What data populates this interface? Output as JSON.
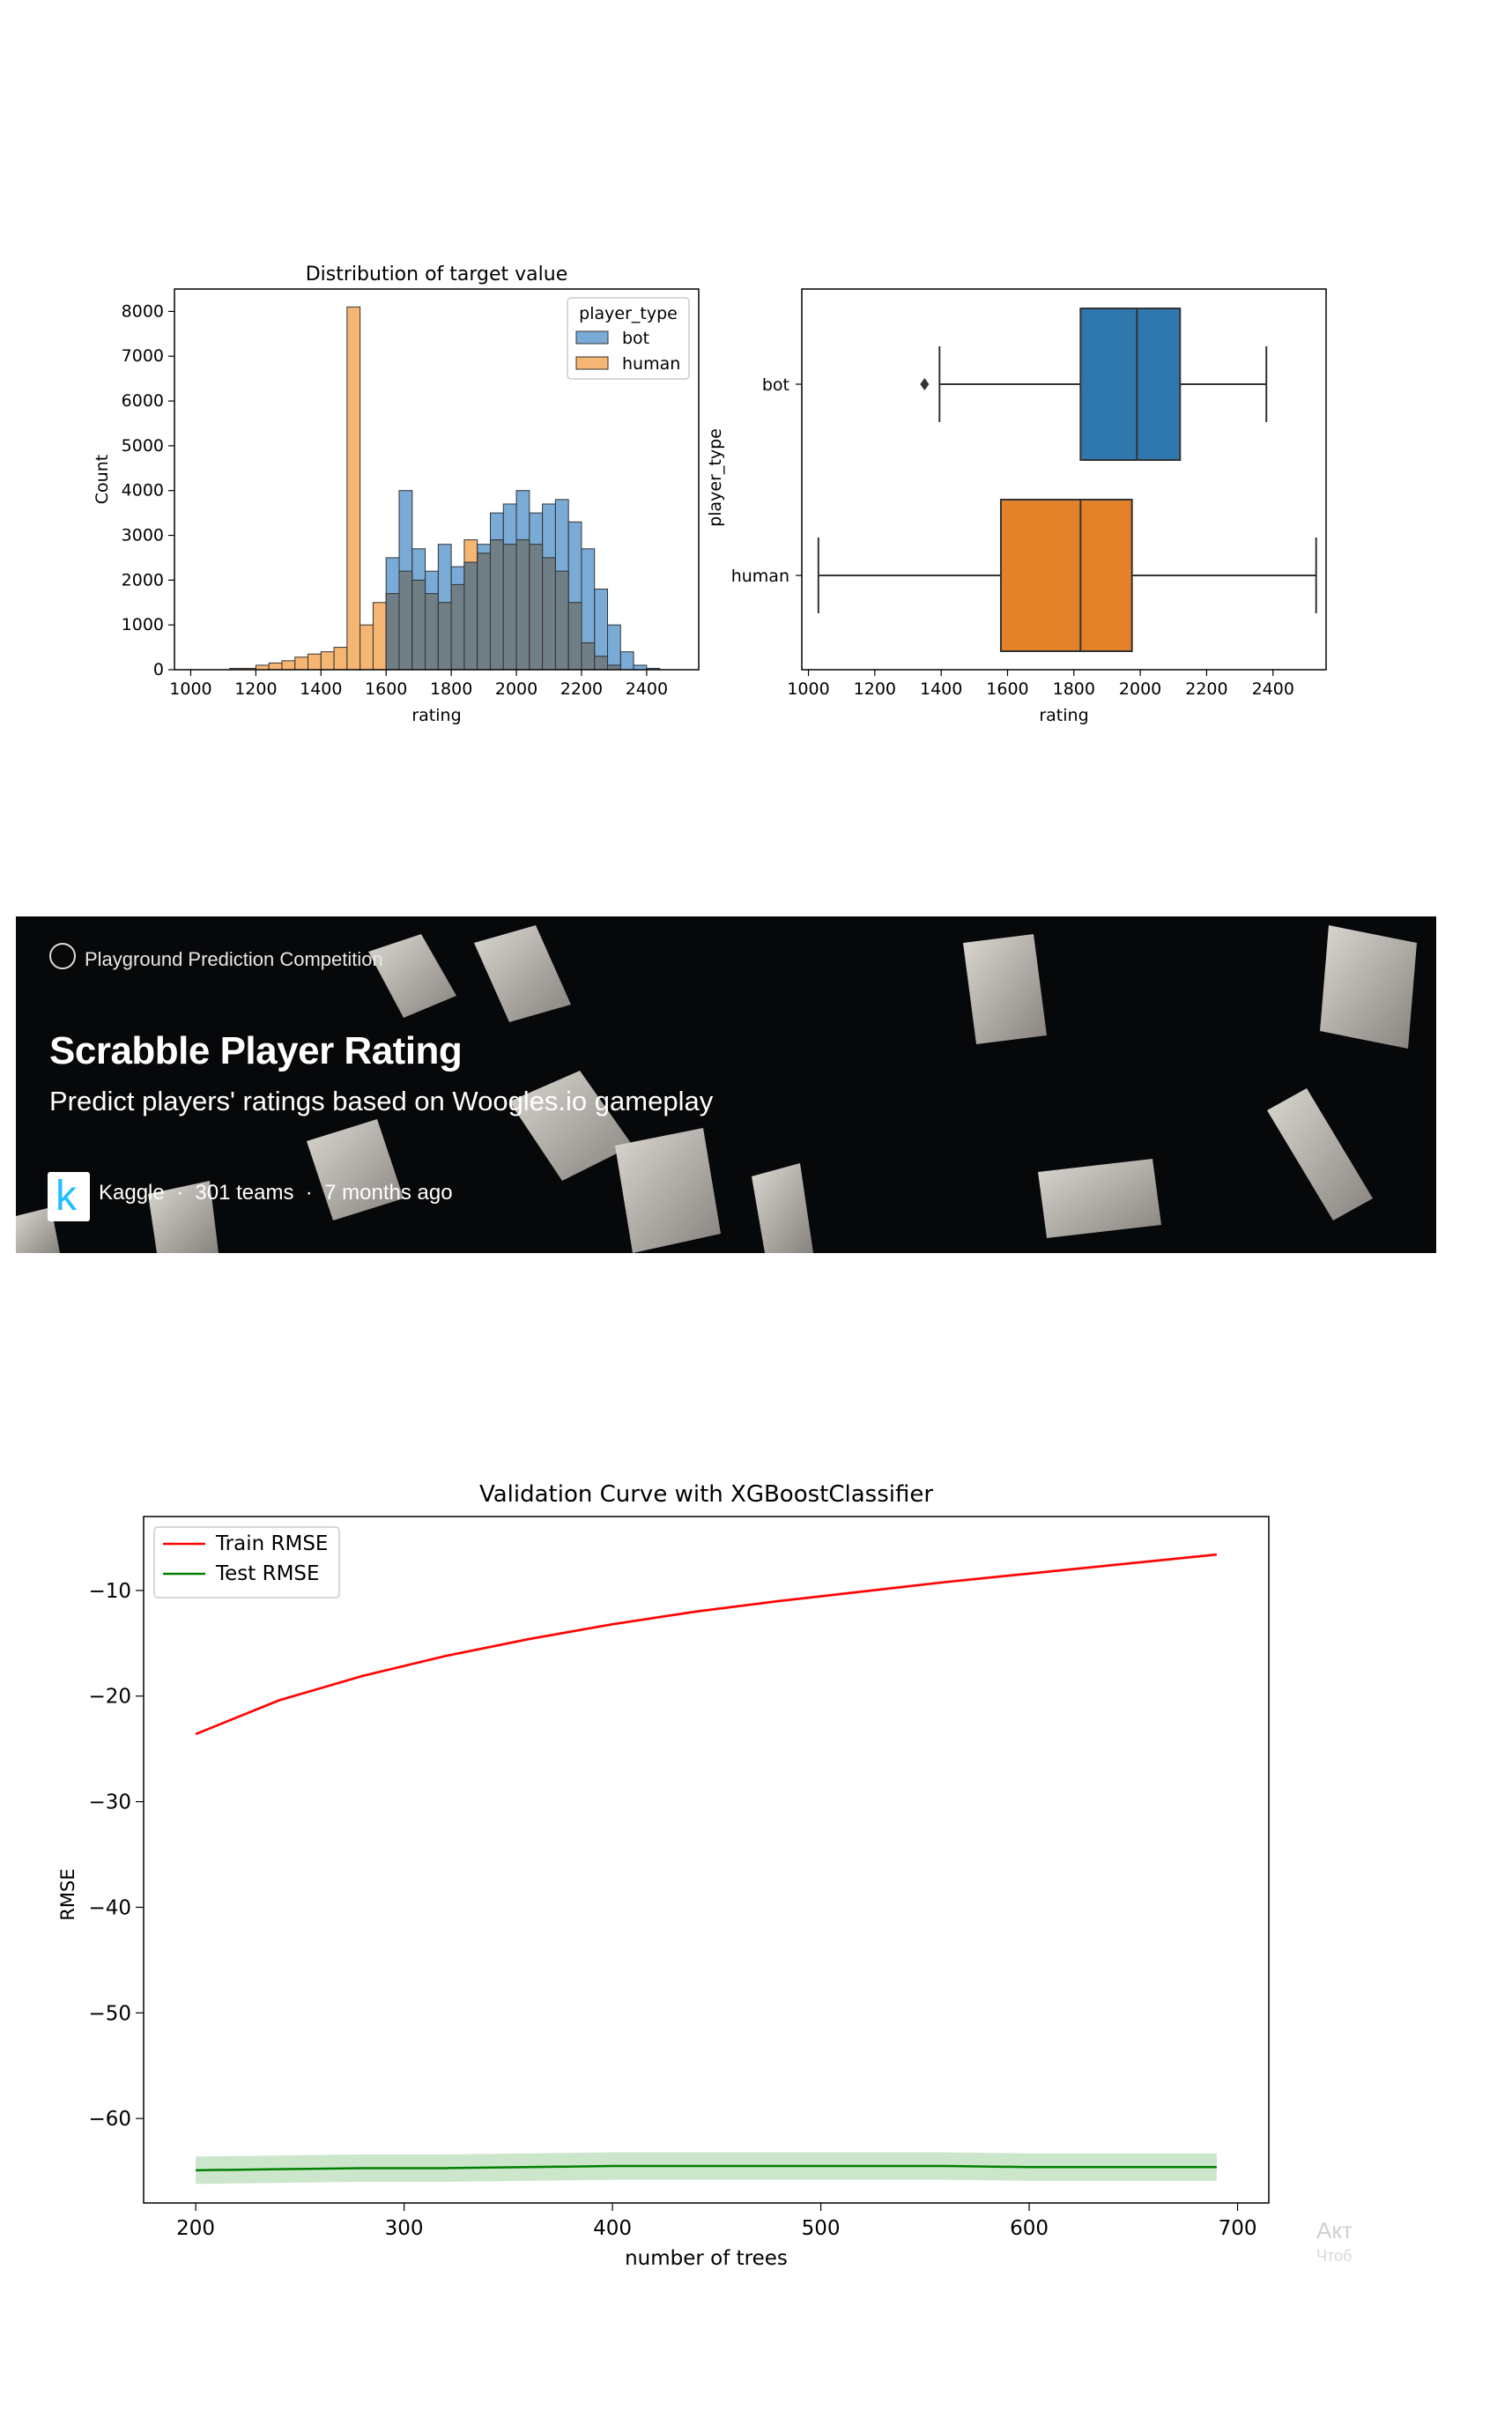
{
  "chart_data": [
    {
      "type": "bar",
      "subtype": "histogram",
      "title": "Distribution of target value",
      "xlabel": "rating",
      "ylabel": "Count",
      "xlim": [
        950,
        2560
      ],
      "ylim": [
        0,
        8500
      ],
      "xticks": [
        1000,
        1200,
        1400,
        1600,
        1800,
        2000,
        2200,
        2400
      ],
      "yticks": [
        0,
        1000,
        2000,
        3000,
        4000,
        5000,
        6000,
        7000,
        8000
      ],
      "legend": {
        "title": "player_type",
        "placement": "top-right"
      },
      "bin_width": 40,
      "series": [
        {
          "name": "human",
          "color": "#f5a95a",
          "bins": [
            [
              1120,
              30
            ],
            [
              1160,
              30
            ],
            [
              1200,
              100
            ],
            [
              1240,
              150
            ],
            [
              1280,
              200
            ],
            [
              1320,
              280
            ],
            [
              1360,
              350
            ],
            [
              1400,
              400
            ],
            [
              1440,
              500
            ],
            [
              1480,
              8100
            ],
            [
              1520,
              1000
            ],
            [
              1560,
              1500
            ],
            [
              1600,
              1700
            ],
            [
              1640,
              2200
            ],
            [
              1680,
              2000
            ],
            [
              1720,
              1700
            ],
            [
              1760,
              1500
            ],
            [
              1800,
              1900
            ],
            [
              1840,
              2900
            ],
            [
              1880,
              2600
            ],
            [
              1920,
              2900
            ],
            [
              1960,
              2800
            ],
            [
              2000,
              2900
            ],
            [
              2040,
              2800
            ],
            [
              2080,
              2500
            ],
            [
              2120,
              2200
            ],
            [
              2160,
              1500
            ],
            [
              2200,
              600
            ],
            [
              2240,
              300
            ],
            [
              2280,
              100
            ]
          ]
        },
        {
          "name": "bot",
          "color": "#4e8fc9",
          "bins": [
            [
              1600,
              2500
            ],
            [
              1640,
              4000
            ],
            [
              1680,
              2700
            ],
            [
              1720,
              2200
            ],
            [
              1760,
              2800
            ],
            [
              1800,
              2300
            ],
            [
              1840,
              2400
            ],
            [
              1880,
              2800
            ],
            [
              1920,
              3500
            ],
            [
              1960,
              3700
            ],
            [
              2000,
              4000
            ],
            [
              2040,
              3500
            ],
            [
              2080,
              3700
            ],
            [
              2120,
              3800
            ],
            [
              2160,
              3300
            ],
            [
              2200,
              2700
            ],
            [
              2240,
              1800
            ],
            [
              2280,
              1000
            ],
            [
              2320,
              400
            ],
            [
              2360,
              100
            ],
            [
              2400,
              30
            ]
          ]
        }
      ]
    },
    {
      "type": "boxplot",
      "xlabel": "rating",
      "ylabel": "player_type",
      "xlim": [
        980,
        2560
      ],
      "xticks": [
        1000,
        1200,
        1400,
        1600,
        1800,
        2000,
        2200,
        2400
      ],
      "categories": [
        "bot",
        "human"
      ],
      "boxes": [
        {
          "name": "bot",
          "color": "#2f78ae",
          "whisker_low": 1395,
          "q1": 1820,
          "median": 1990,
          "q3": 2120,
          "whisker_high": 2380,
          "outliers": [
            1350
          ]
        },
        {
          "name": "human",
          "color": "#e4822a",
          "whisker_low": 1030,
          "q1": 1580,
          "median": 1820,
          "q3": 1975,
          "whisker_high": 2530,
          "outliers": []
        }
      ]
    },
    {
      "type": "line",
      "title": "Validation Curve with XGBoostClassifier",
      "xlabel": "number of trees",
      "ylabel": "RMSE",
      "xlim": [
        175,
        715
      ],
      "ylim": [
        -68,
        -3
      ],
      "xticks": [
        200,
        300,
        400,
        500,
        600,
        700
      ],
      "yticks": [
        -10,
        -20,
        -30,
        -40,
        -50,
        -60
      ],
      "legend": {
        "placement": "top-left"
      },
      "x": [
        200,
        240,
        280,
        320,
        360,
        400,
        440,
        480,
        520,
        560,
        600,
        640,
        690
      ],
      "series": [
        {
          "name": "Train RMSE",
          "color": "#ff0000",
          "values": [
            -23.6,
            -20.4,
            -18.1,
            -16.2,
            -14.6,
            -13.2,
            -12.0,
            -11.0,
            -10.1,
            -9.2,
            -8.4,
            -7.6,
            -6.6
          ],
          "band": 0.15
        },
        {
          "name": "Test RMSE",
          "color": "#008000",
          "values": [
            -64.9,
            -64.8,
            -64.7,
            -64.7,
            -64.6,
            -64.5,
            -64.5,
            -64.5,
            -64.5,
            -64.5,
            -64.6,
            -64.6,
            -64.6
          ],
          "band": 1.3
        }
      ]
    }
  ],
  "banner": {
    "competition_type": "Playground Prediction Competition",
    "title": "Scrabble Player Rating",
    "subtitle": "Predict players' ratings based on Woogles.io gameplay",
    "logo_letter": "k",
    "meta": "Kaggle  ·  301 teams  ·  7 months ago"
  },
  "overlay": {
    "text1": "Акт",
    "text2": "Чтоб"
  }
}
